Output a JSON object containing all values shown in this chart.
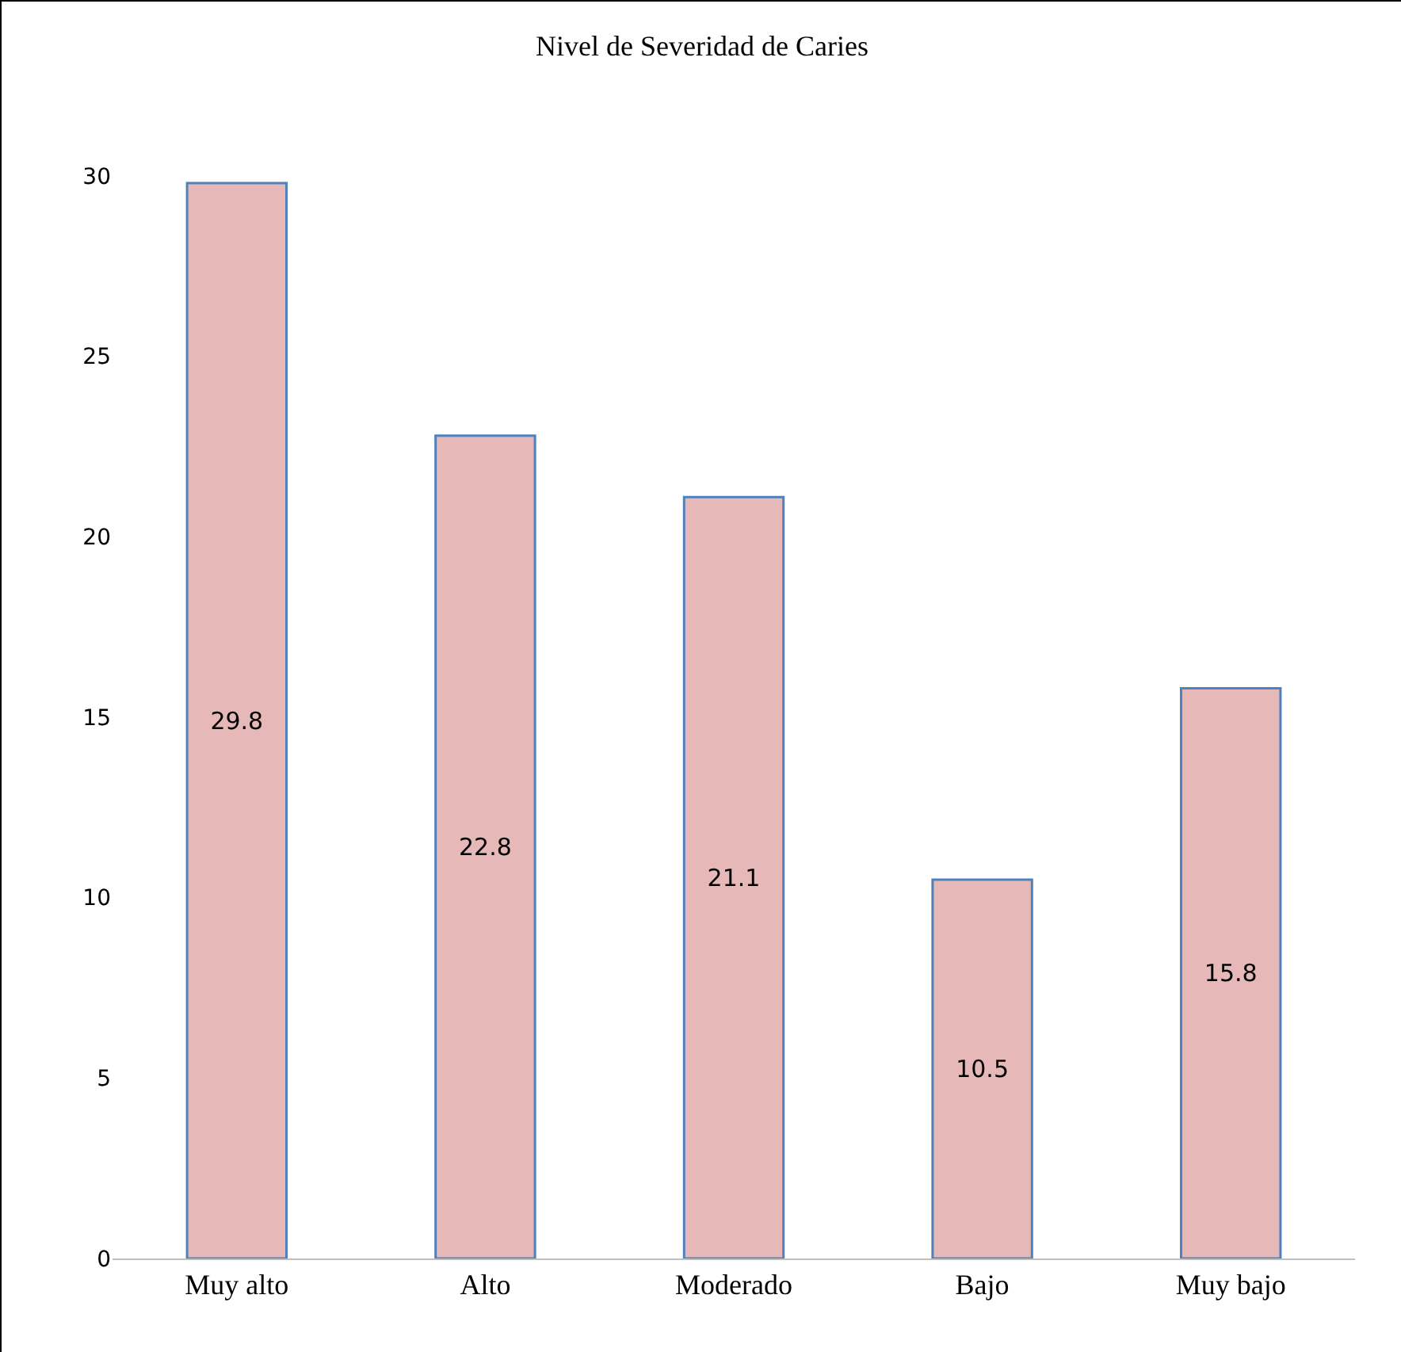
{
  "chart_data": {
    "type": "bar",
    "title": "Nivel de Severidad de Caries",
    "categories": [
      "Muy alto",
      "Alto",
      "Moderado",
      "Bajo",
      "Muy bajo"
    ],
    "values": [
      29.8,
      22.8,
      21.1,
      10.5,
      15.8
    ],
    "color": "#e6b8b7",
    "ylim": [
      0,
      30
    ],
    "yticks": [
      0,
      5,
      10,
      15,
      20,
      25,
      30
    ],
    "grid": false,
    "data_labels": true
  }
}
